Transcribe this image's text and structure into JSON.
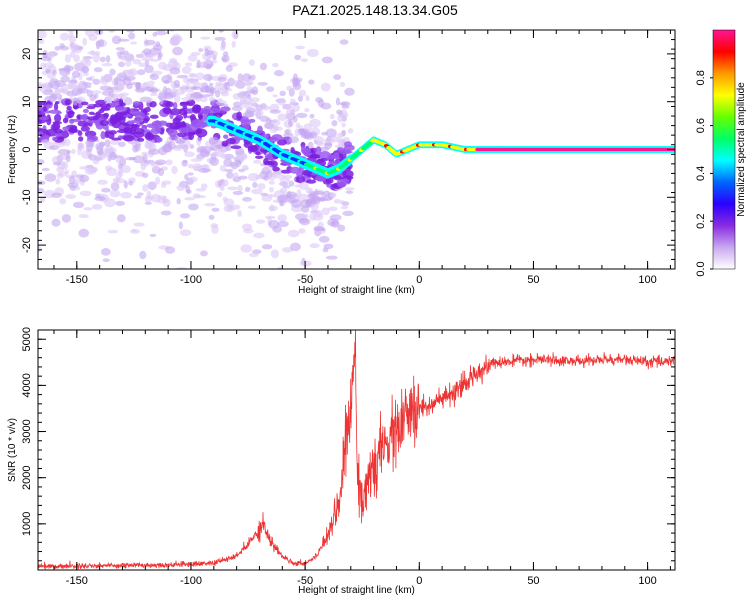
{
  "title": "PAZ1.2025.148.13.34.G05",
  "chart_data": [
    {
      "type": "heatmap",
      "xlabel": "Height of straight line (km)",
      "ylabel": "Frequency (Hz)",
      "xlim": [
        -167,
        112
      ],
      "ylim": [
        -25,
        25
      ],
      "xticks": [
        -150,
        -100,
        -50,
        0,
        50,
        100
      ],
      "yticks": [
        -20,
        -10,
        0,
        10,
        20
      ],
      "colorbar": {
        "label": "Normalized spectral amplitude",
        "range": [
          0,
          1
        ],
        "ticks": [
          0.0,
          0.2,
          0.4,
          0.6,
          0.8
        ],
        "colormap": "rainbow",
        "colors": [
          "#e8dcf8",
          "#8a2be2",
          "#0000ff",
          "#00ffff",
          "#00ff00",
          "#ffff00",
          "#ff8c00",
          "#ff0000",
          "#ff1493"
        ]
      },
      "signal_trace": {
        "x": [
          -90,
          -80,
          -70,
          -60,
          -50,
          -45,
          -40,
          -35,
          -30,
          -25,
          -20,
          -15,
          -10,
          -5,
          0,
          5,
          10,
          15,
          20,
          30,
          50,
          80,
          90,
          95,
          112
        ],
        "y": [
          6,
          4,
          2,
          -1,
          -3,
          -4,
          -5,
          -4,
          -2,
          0,
          2,
          1,
          -1,
          0,
          1,
          1,
          1,
          0.5,
          0,
          0,
          0,
          0,
          0,
          0,
          0
        ]
      }
    },
    {
      "type": "line",
      "xlabel": "Height of straight line (km)",
      "ylabel": "SNR (10 * v/v)",
      "xlim": [
        -167,
        112
      ],
      "ylim": [
        0,
        5200
      ],
      "xticks": [
        -150,
        -100,
        -50,
        0,
        50,
        100
      ],
      "yticks": [
        1000,
        2000,
        3000,
        4000,
        5000
      ],
      "color": "#ee3333",
      "x": [
        -167,
        -150,
        -130,
        -110,
        -90,
        -80,
        -75,
        -70,
        -68,
        -65,
        -60,
        -55,
        -50,
        -45,
        -40,
        -35,
        -32,
        -30,
        -28,
        -27,
        -25,
        -20,
        -15,
        -10,
        -5,
        0,
        5,
        10,
        15,
        20,
        25,
        30,
        40,
        50,
        60,
        70,
        80,
        90,
        100,
        112
      ],
      "series": [
        {
          "values": [
            80,
            90,
            100,
            110,
            150,
            300,
            550,
            900,
            1000,
            600,
            300,
            150,
            150,
            300,
            800,
            1500,
            2800,
            3500,
            5000,
            2200,
            1500,
            2200,
            2700,
            3000,
            3300,
            3500,
            3600,
            3700,
            3800,
            4000,
            4300,
            4450,
            4520,
            4550,
            4550,
            4520,
            4560,
            4560,
            4500,
            4550
          ]
        }
      ]
    }
  ]
}
